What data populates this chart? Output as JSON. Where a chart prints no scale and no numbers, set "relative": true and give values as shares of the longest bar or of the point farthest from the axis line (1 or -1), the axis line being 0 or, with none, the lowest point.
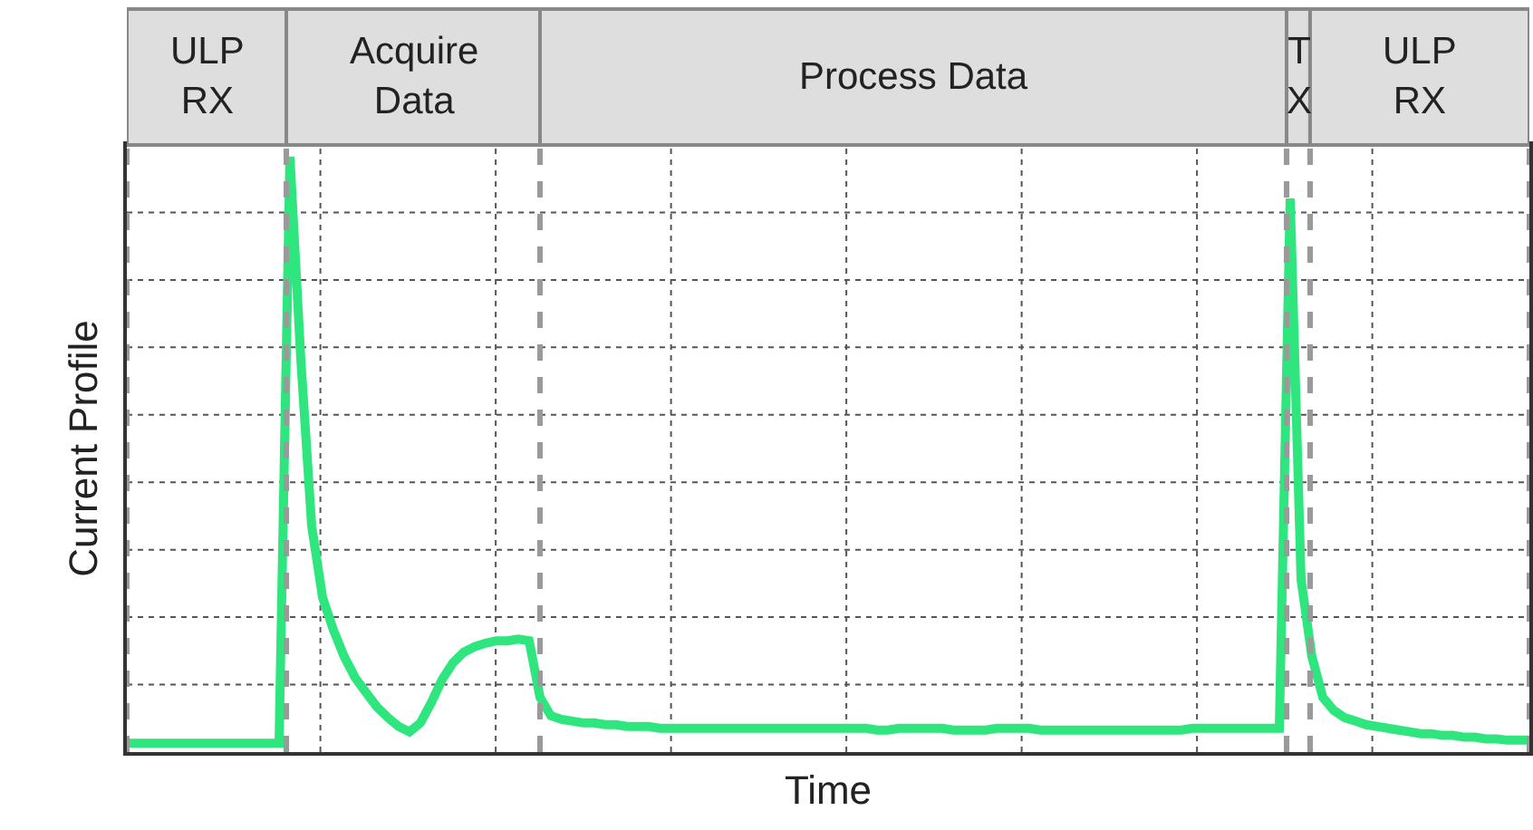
{
  "chart_data": {
    "type": "line",
    "relative": true,
    "xlabel": "Time",
    "ylabel": "Current Profile",
    "grid": true,
    "marker": "none",
    "line_style": "solid",
    "categories": [
      null,
      null,
      null,
      null,
      null,
      null,
      null,
      null,
      null,
      null,
      null,
      null,
      null,
      null,
      null,
      null,
      null,
      null,
      null,
      null,
      null,
      null,
      null,
      null,
      null,
      null,
      null,
      null,
      null,
      null,
      null,
      null,
      null,
      null,
      null,
      null,
      null,
      null,
      null,
      null,
      null,
      null,
      null,
      null,
      null,
      null,
      null,
      null,
      null,
      null,
      null,
      null,
      null,
      null,
      null,
      null,
      null,
      null,
      null,
      null,
      null,
      null,
      null,
      null,
      null,
      null,
      null,
      null,
      null,
      null,
      null,
      null,
      null,
      null,
      null,
      null,
      null,
      null,
      null,
      null,
      null,
      null,
      null,
      null,
      null,
      null,
      null,
      null,
      null,
      null,
      null,
      null,
      null,
      null,
      null,
      null,
      null,
      null,
      null,
      null,
      null,
      null,
      null,
      null,
      null,
      null,
      null,
      null,
      null,
      null,
      null,
      null,
      null,
      null,
      null,
      null,
      null,
      null,
      null,
      null,
      null,
      null,
      null,
      null,
      null,
      null,
      null,
      null,
      null,
      null
    ],
    "series": [
      {
        "color": "#2ee67d",
        "values": [
          0.015,
          0.015,
          0.015,
          0.015,
          0.015,
          0.015,
          0.015,
          0.015,
          0.015,
          0.015,
          0.015,
          0.015,
          0.015,
          0.015,
          0.015,
          1,
          0.66,
          0.38,
          0.26,
          0.205,
          0.16,
          0.125,
          0.1,
          0.076,
          0.058,
          0.043,
          0.034,
          0.049,
          0.083,
          0.122,
          0.15,
          0.168,
          0.177,
          0.183,
          0.187,
          0.187,
          0.19,
          0.187,
          0.092,
          0.061,
          0.055,
          0.052,
          0.049,
          0.049,
          0.046,
          0.046,
          0.043,
          0.043,
          0.043,
          0.04,
          0.04,
          0.04,
          0.04,
          0.04,
          0.04,
          0.04,
          0.04,
          0.04,
          0.04,
          0.04,
          0.04,
          0.04,
          0.04,
          0.04,
          0.04,
          0.04,
          0.04,
          0.04,
          0.04,
          0.037,
          0.037,
          0.04,
          0.04,
          0.04,
          0.04,
          0.04,
          0.037,
          0.037,
          0.037,
          0.037,
          0.04,
          0.04,
          0.04,
          0.04,
          0.037,
          0.037,
          0.037,
          0.037,
          0.037,
          0.037,
          0.037,
          0.037,
          0.037,
          0.037,
          0.037,
          0.037,
          0.037,
          0.037,
          0.04,
          0.04,
          0.04,
          0.04,
          0.04,
          0.04,
          0.04,
          0.04,
          0.04,
          0.93,
          0.29,
          0.16,
          0.092,
          0.07,
          0.058,
          0.052,
          0.046,
          0.043,
          0.04,
          0.037,
          0.034,
          0.031,
          0.031,
          0.028,
          0.028,
          0.025,
          0.025,
          0.022,
          0.022,
          0.02,
          0.02,
          0.02
        ]
      }
    ],
    "annotations": [
      "ULP\nRX",
      "Acquire\nData",
      "Process Data",
      "T\nX",
      "ULP\nRX"
    ]
  }
}
